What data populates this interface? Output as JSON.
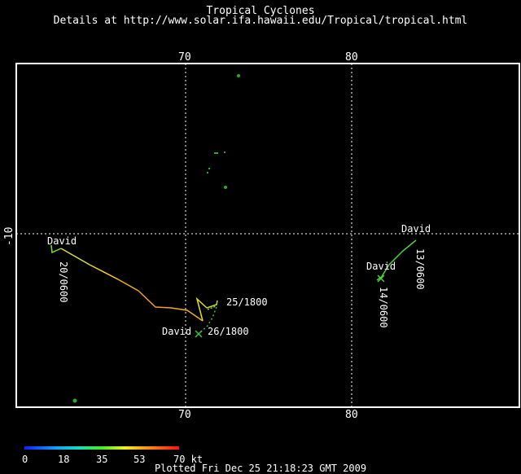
{
  "header": {
    "title": "Tropical Cyclones",
    "subtitle": "Details at http://www.solar.ifa.hawaii.edu/Tropical/tropical.html"
  },
  "axes": {
    "x_ticks_top": [
      "70",
      "80"
    ],
    "x_ticks_bottom": [
      "70",
      "80"
    ],
    "y_tick": "-10"
  },
  "storms": [
    {
      "name": "David",
      "date_start": "20/0600",
      "date_mid": "25/1800",
      "date_end": "26/1800"
    },
    {
      "name": "David",
      "date_start": "13/0600",
      "date_end": "14/0600"
    }
  ],
  "colorbar": {
    "labels": [
      "0",
      "18",
      "35",
      "53",
      "70 kt"
    ]
  },
  "footer": "Plotted Fri Dec 25 21:18:23 GMT 2009"
}
